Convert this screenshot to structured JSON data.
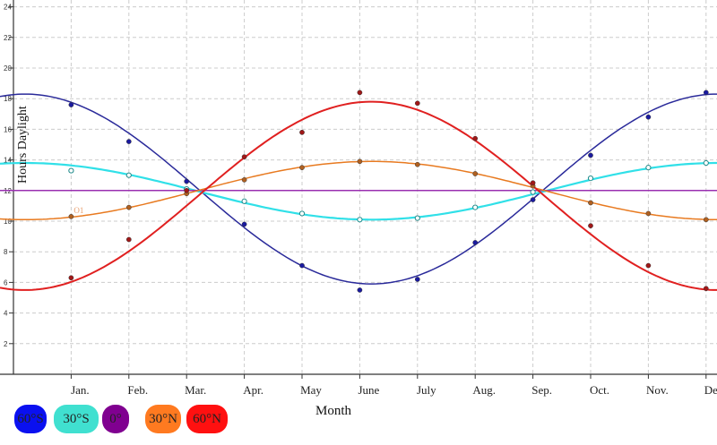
{
  "chart_data": {
    "type": "line",
    "xlabel": "Month",
    "ylabel": "Hours Daylight",
    "categories": [
      "Jan.",
      "Feb.",
      "Mar.",
      "Apr.",
      "May",
      "June",
      "July",
      "Aug.",
      "Sep.",
      "Oct.",
      "Nov.",
      "Dec."
    ],
    "ylim": [
      0,
      24
    ],
    "yticks": [
      2,
      4,
      6,
      8,
      10,
      12,
      14,
      16,
      18,
      20,
      22,
      24
    ],
    "grid": true,
    "legend_position": "bottom-left",
    "point_label": "O1",
    "series": [
      {
        "name": "60°S",
        "color": "#2a2a9a",
        "dot": "#1a1aa0",
        "fit": {
          "mean": 12.1,
          "amp": -6.2,
          "peak_month": 6.2
        },
        "values": [
          17.6,
          15.2,
          12.6,
          9.8,
          7.1,
          5.5,
          6.2,
          8.6,
          11.4,
          14.3,
          16.8,
          18.4
        ]
      },
      {
        "name": "30°S",
        "color": "#30e0e8",
        "dot": "#30c8c8",
        "fit": {
          "mean": 11.95,
          "amp": -1.85,
          "peak_month": 6.2
        },
        "values": [
          13.3,
          13.0,
          12.1,
          11.3,
          10.5,
          10.1,
          10.2,
          10.9,
          11.9,
          12.8,
          13.5,
          13.8
        ]
      },
      {
        "name": "0°",
        "color": "#9a30b0",
        "dot": "#9a30b0",
        "fit": {
          "mean": 12,
          "amp": 0,
          "peak_month": 6.2
        },
        "values": [
          12,
          12,
          12,
          12,
          12,
          12,
          12,
          12,
          12,
          12,
          12,
          12
        ]
      },
      {
        "name": "30°N",
        "color": "#e87a20",
        "dot": "#b06020",
        "fit": {
          "mean": 12.0,
          "amp": 1.9,
          "peak_month": 6.2
        },
        "values": [
          10.3,
          10.9,
          11.8,
          12.7,
          13.5,
          13.9,
          13.7,
          13.1,
          12.3,
          11.2,
          10.5,
          10.1
        ]
      },
      {
        "name": "60°N",
        "color": "#e02020",
        "dot": "#a01818",
        "fit": {
          "mean": 11.65,
          "amp": 6.15,
          "peak_month": 6.2
        },
        "values": [
          6.3,
          8.8,
          12.0,
          14.2,
          15.8,
          18.4,
          17.7,
          15.4,
          12.5,
          9.7,
          7.1,
          5.6
        ]
      }
    ],
    "legend_colors": [
      "#0a10f0",
      "#40e0d0",
      "#800090",
      "#ff7a20",
      "#ff1010"
    ]
  }
}
